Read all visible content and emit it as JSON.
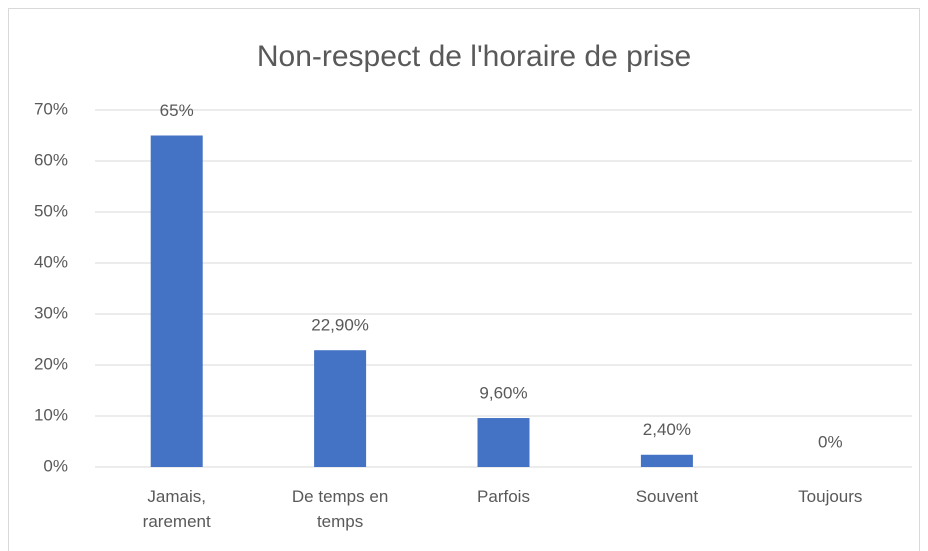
{
  "chart_data": {
    "type": "bar",
    "title": "Non-respect de l'horaire de prise",
    "categories": [
      "Jamais, rarement",
      "De temps en temps",
      "Parfois",
      "Souvent",
      "Toujours"
    ],
    "values": [
      65,
      22.9,
      9.6,
      2.4,
      0
    ],
    "value_labels": [
      "65%",
      "22,90%",
      "9,60%",
      "2,40%",
      "0%"
    ],
    "color": "#4472c4",
    "ylim": [
      0,
      70
    ],
    "yticks": [
      {
        "value": 0,
        "label": "0%"
      },
      {
        "value": 10,
        "label": "10%"
      },
      {
        "value": 20,
        "label": "20%"
      },
      {
        "value": 30,
        "label": "30%"
      },
      {
        "value": 40,
        "label": "40%"
      },
      {
        "value": 50,
        "label": "50%"
      },
      {
        "value": 60,
        "label": "60%"
      },
      {
        "value": 70,
        "label": "70%"
      }
    ],
    "grid": true
  }
}
